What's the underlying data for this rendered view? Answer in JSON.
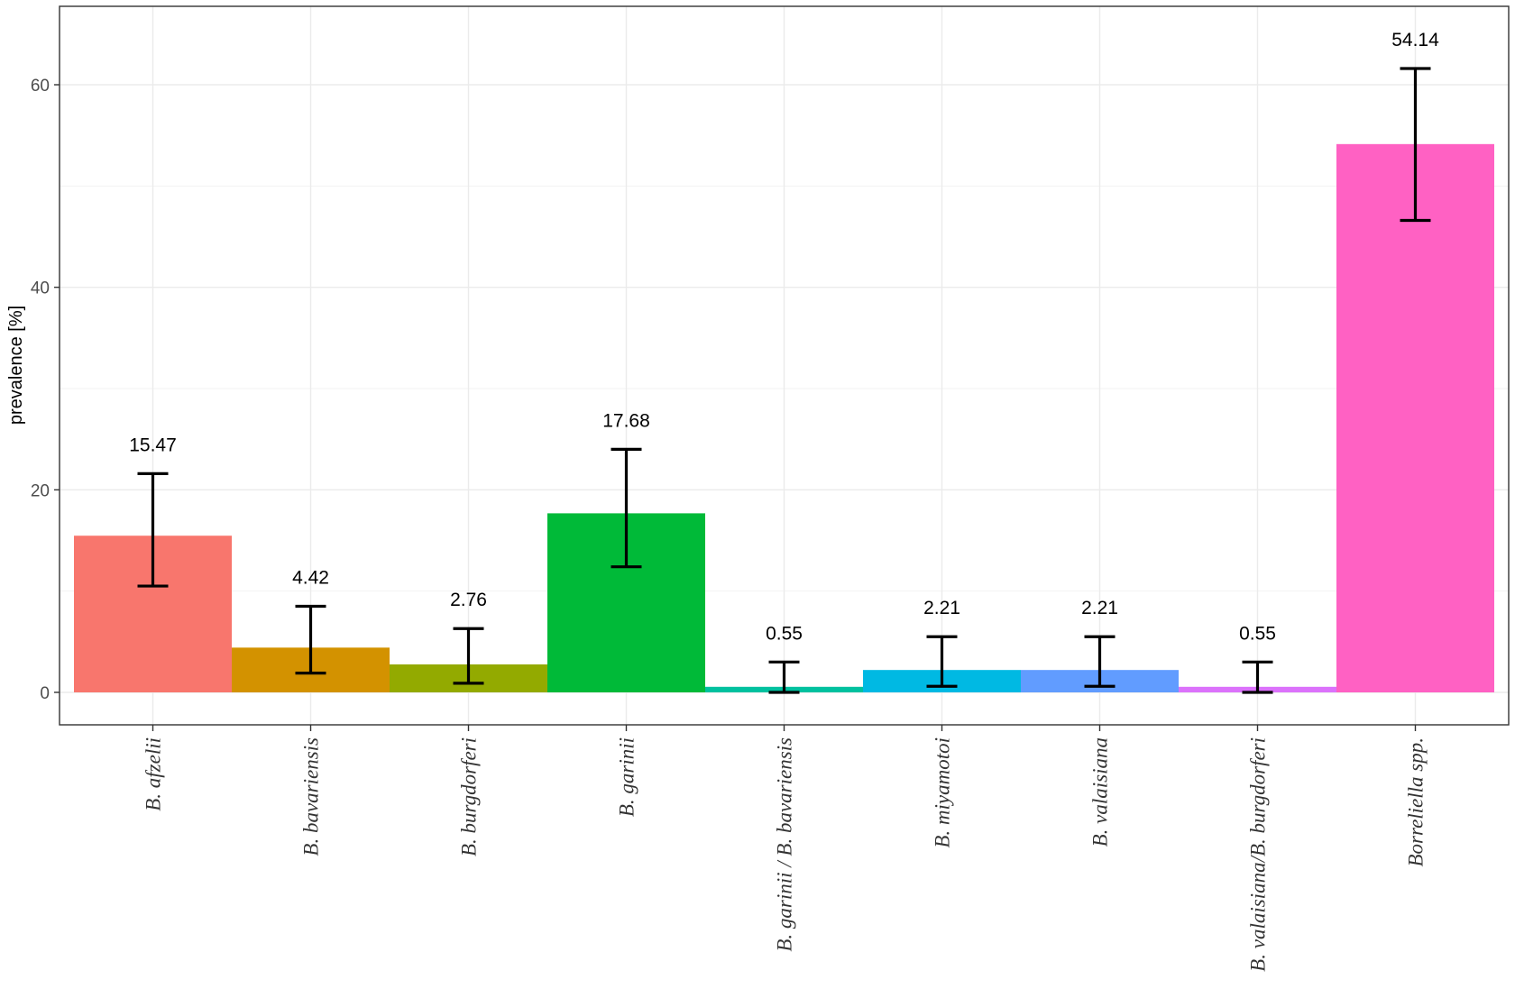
{
  "chart_data": {
    "type": "bar",
    "title": "",
    "xlabel": "",
    "ylabel": "prevalence [%]",
    "ylim": [
      0,
      66
    ],
    "yticks": [
      0,
      20,
      40,
      60
    ],
    "grid": true,
    "legend": "none",
    "categories": [
      "B. afzelii",
      "B. bavariensis",
      "B. burgdorferi",
      "B. garinii",
      "B. garinii / B. bavariensis",
      "B. miyamotoi",
      "B. valaisiana",
      "B. valaisiana/B. burgdorferi",
      "Borreliella spp."
    ],
    "values": [
      15.47,
      4.42,
      2.76,
      17.68,
      0.55,
      2.21,
      2.21,
      0.55,
      54.14
    ],
    "value_labels": [
      "15.47",
      "4.42",
      "2.76",
      "17.68",
      "0.55",
      "2.21",
      "2.21",
      "0.55",
      "54.14"
    ],
    "error_low": [
      10.5,
      1.9,
      0.9,
      12.4,
      0.0,
      0.6,
      0.6,
      0.0,
      46.6
    ],
    "error_high": [
      21.6,
      8.5,
      6.3,
      24.0,
      3.0,
      5.5,
      5.5,
      3.0,
      61.6
    ],
    "colors": [
      "#F8766D",
      "#D39200",
      "#93AA00",
      "#00BA38",
      "#00C19F",
      "#00B9E3",
      "#619CFF",
      "#DB72FB",
      "#FF61C3"
    ]
  }
}
